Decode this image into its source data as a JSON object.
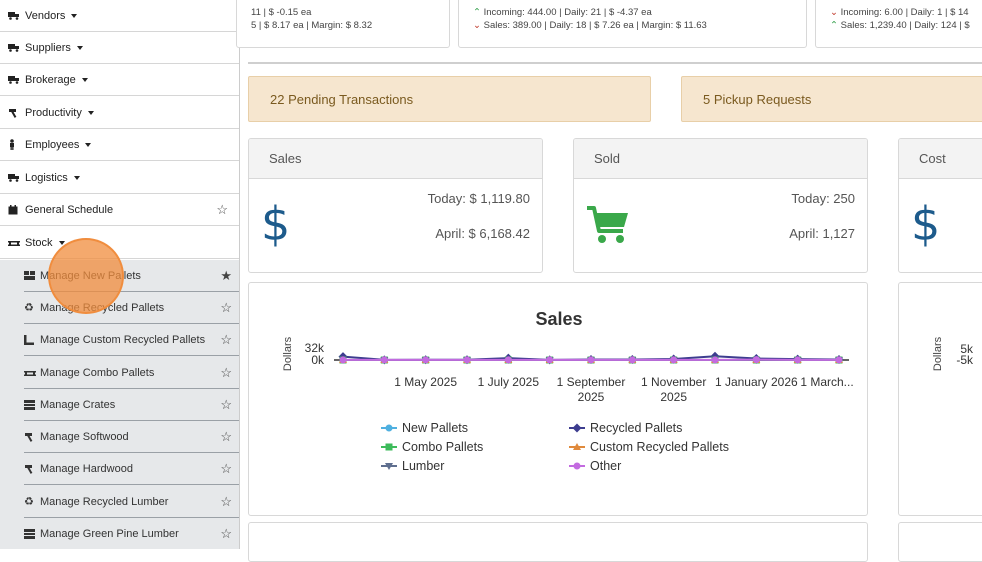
{
  "sidebar": {
    "items": [
      {
        "label": "Vendors",
        "icon": "truck-icon"
      },
      {
        "label": "Suppliers",
        "icon": "truck-icon"
      },
      {
        "label": "Brokerage",
        "icon": "truck-icon"
      },
      {
        "label": "Productivity",
        "icon": "hammer-icon"
      },
      {
        "label": "Employees",
        "icon": "person-icon"
      },
      {
        "label": "Logistics",
        "icon": "truck-icon"
      },
      {
        "label": "General Schedule",
        "icon": "calendar-icon"
      },
      {
        "label": "Stock",
        "icon": "pallet-icon"
      }
    ],
    "subitems": [
      {
        "label": "Manage New Pallets",
        "starred": true
      },
      {
        "label": "Manage Recycled Pallets",
        "starred": false
      },
      {
        "label": "Manage Custom Recycled Pallets",
        "starred": false
      },
      {
        "label": "Manage Combo Pallets",
        "starred": false
      },
      {
        "label": "Manage Crates",
        "starred": false
      },
      {
        "label": "Manage Softwood",
        "starred": false
      },
      {
        "label": "Manage Hardwood",
        "starred": false
      },
      {
        "label": "Manage Recycled Lumber",
        "starred": false
      },
      {
        "label": "Manage Green Pine Lumber",
        "starred": false
      }
    ]
  },
  "top_cards": [
    {
      "line1": "11 | $ -0.15 ea",
      "line2": "5 | $ 8.17 ea | Margin: $ 8.32"
    },
    {
      "line1": "Incoming: 444.00 | Daily: 21 | $ -4.37 ea",
      "line2": "Sales: 389.00 | Daily: 18 | $ 7.26 ea | Margin: $ 11.63"
    },
    {
      "line1": "Incoming: 6.00 | Daily: 1 | $ 14",
      "line2": "Sales: 1,239.40 | Daily: 124 | $"
    }
  ],
  "banners": {
    "pending": "22 Pending Transactions",
    "pickup": "5 Pickup Requests"
  },
  "cards": {
    "sales": {
      "title": "Sales",
      "today": "Today: $ 1,119.80",
      "month": "April: $ 6,168.42",
      "icon": "$"
    },
    "sold": {
      "title": "Sold",
      "today": "Today: 250",
      "month": "April: 1,127"
    },
    "cost": {
      "title": "Cost",
      "icon": "$"
    }
  },
  "colors": {
    "accent_blue": "#1d5b8c",
    "cart_green": "#3aa84a",
    "banner_bg": "#f6e6cf"
  },
  "chart_data": [
    {
      "type": "line",
      "title": "Sales",
      "ylabel": "Dollars",
      "y_ticks": [
        "32k",
        "0k"
      ],
      "x_tick_labels": [
        [
          "1 May 2025"
        ],
        [
          "1 July 2025"
        ],
        [
          "1 September",
          "2025"
        ],
        [
          "1 November",
          "2025"
        ],
        [
          "1 January 2026"
        ],
        [
          "1 March..."
        ]
      ],
      "x": [
        "Mar 2025",
        "Apr 2025",
        "May 2025",
        "Jun 2025",
        "Jul 2025",
        "Aug 2025",
        "Sep 2025",
        "Oct 2025",
        "Nov 2025",
        "Dec 2025",
        "Jan 2026",
        "Feb 2026",
        "Mar 2026"
      ],
      "ylim": [
        0,
        32000
      ],
      "series": [
        {
          "name": "New Pallets",
          "color": "#4fb0e0",
          "marker": "circle",
          "values": [
            0,
            0,
            0,
            0,
            0,
            0,
            0,
            0,
            0,
            0,
            0,
            0,
            0
          ]
        },
        {
          "name": "Recycled Pallets",
          "color": "#3d3d8f",
          "marker": "diamond",
          "values": [
            9000,
            500,
            800,
            700,
            5000,
            500,
            1200,
            1400,
            2600,
            10000,
            4000,
            2500,
            1500
          ]
        },
        {
          "name": "Combo Pallets",
          "color": "#3dbb5b",
          "marker": "square",
          "values": [
            0,
            0,
            0,
            0,
            0,
            0,
            0,
            0,
            0,
            0,
            0,
            0,
            0
          ]
        },
        {
          "name": "Custom Recycled Pallets",
          "color": "#e08a3c",
          "marker": "triangle",
          "values": [
            0,
            0,
            0,
            0,
            0,
            0,
            0,
            0,
            0,
            0,
            0,
            0,
            0
          ]
        },
        {
          "name": "Lumber",
          "color": "#5f6f8f",
          "marker": "triangle-down",
          "values": [
            0,
            0,
            0,
            0,
            0,
            0,
            0,
            0,
            0,
            0,
            0,
            0,
            0
          ]
        },
        {
          "name": "Other",
          "color": "#c36be0",
          "marker": "circle",
          "values": [
            200,
            200,
            200,
            200,
            200,
            200,
            200,
            200,
            200,
            200,
            1000,
            200,
            200
          ]
        }
      ],
      "legend": "bottom",
      "grid": false
    },
    {
      "type": "line",
      "ylabel": "Dollars",
      "y_ticks": [
        "5k",
        "-5k"
      ]
    }
  ]
}
